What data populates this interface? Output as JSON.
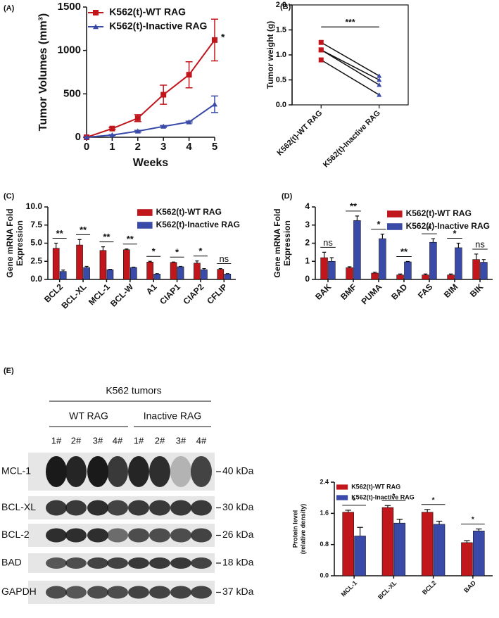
{
  "chart_data": [
    {
      "type": "line",
      "label": "(A)",
      "ylabel": "Tumor Volumes (mm³)",
      "xlabel": "Weeks",
      "x": [
        0,
        1,
        2,
        3,
        4,
        5
      ],
      "xlim": [
        0,
        5
      ],
      "xticks": [
        0,
        1,
        2,
        3,
        4,
        5
      ],
      "ylim": [
        0,
        1500
      ],
      "yticks": [
        0,
        500,
        1000,
        1500
      ],
      "series": [
        {
          "name": "K562(t)-WT RAG",
          "color": "#c0161c",
          "marker": "square",
          "values": [
            0,
            100,
            220,
            490,
            720,
            1120
          ],
          "errors": [
            0,
            10,
            40,
            110,
            150,
            240
          ]
        },
        {
          "name": "K562(t)-Inactive RAG",
          "color": "#3a4aa8",
          "marker": "triangle",
          "values": [
            0,
            25,
            70,
            125,
            175,
            380
          ],
          "errors": [
            0,
            5,
            10,
            10,
            10,
            95
          ]
        }
      ],
      "annotation": "*"
    },
    {
      "type": "paired",
      "label": "(B)",
      "ylabel": "Tumor weight (g)",
      "categories": [
        "K562(t)-WT RAG",
        "K562(t)-Inactive RAG"
      ],
      "colors": [
        "#c0161c",
        "#3a4aa8"
      ],
      "ylim": [
        0,
        2
      ],
      "yticks": [
        {
          "value": 0,
          "label": "0.0"
        },
        0.5,
        {
          "value": 1,
          "label": "1.0"
        },
        1.5,
        {
          "value": 2,
          "label": "2.0"
        }
      ],
      "pairs": [
        [
          1.25,
          0.58
        ],
        [
          1.1,
          0.5
        ],
        [
          1.1,
          0.4
        ],
        [
          0.9,
          0.2
        ]
      ],
      "annotation": "***"
    },
    {
      "type": "bar",
      "label": "(C)",
      "ylabel": [
        "Gene mRNA Fold",
        "Expression"
      ],
      "categories": [
        "BCL2",
        "BCL-XL",
        "MCL-1",
        "BCL-W",
        "A1",
        "CIAP1",
        "CIAP2",
        "CFLIP"
      ],
      "ylim": [
        0,
        10
      ],
      "yticks": [
        {
          "value": 0,
          "label": "0.0"
        },
        2.5,
        {
          "value": 5,
          "label": "5.0"
        },
        7.5,
        {
          "value": 10,
          "label": "10.0"
        }
      ],
      "series": [
        {
          "name": "K562(t)-WT RAG",
          "color": "#c0161c",
          "values": [
            4.3,
            4.75,
            4.0,
            4.1,
            2.4,
            2.35,
            2.25,
            1.4
          ],
          "errors": [
            0.7,
            0.75,
            0.5,
            0.1,
            0.1,
            0.05,
            0.3,
            0.1
          ]
        },
        {
          "name": "K562(t)-Inactive RAG",
          "color": "#3a4aa8",
          "values": [
            1.1,
            1.65,
            1.35,
            1.65,
            0.75,
            1.75,
            1.35,
            0.75
          ],
          "errors": [
            0.2,
            0.15,
            0.05,
            0.05,
            0.05,
            0.05,
            0.15,
            0.05
          ]
        }
      ],
      "annotations": [
        "**",
        "**",
        "**",
        "**",
        "*",
        "*",
        "*",
        "ns"
      ]
    },
    {
      "type": "bar",
      "label": "(D)",
      "ylabel": [
        "Gene mRNA Fold",
        "Expression"
      ],
      "categories": [
        "BAK",
        "BMF",
        "PUMA",
        "BAD",
        "FAS",
        "BIM",
        "BIK"
      ],
      "ylim": [
        0,
        4
      ],
      "yticks": [
        0,
        1,
        2,
        3,
        4
      ],
      "series": [
        {
          "name": "K562(t)-WT RAG",
          "color": "#c0161c",
          "values": [
            1.2,
            0.65,
            0.35,
            0.25,
            0.25,
            0.25,
            1.1
          ],
          "errors": [
            0.3,
            0.05,
            0.05,
            0.05,
            0.05,
            0.05,
            0.3
          ]
        },
        {
          "name": "K562(t)-Inactive RAG",
          "color": "#3a4aa8",
          "values": [
            1.0,
            3.25,
            2.25,
            0.97,
            2.05,
            1.75,
            0.95
          ],
          "errors": [
            0.2,
            0.25,
            0.25,
            0.02,
            0.2,
            0.25,
            0.15
          ]
        }
      ],
      "annotations": [
        "ns",
        "**",
        "*",
        "**",
        "*",
        "*",
        "ns"
      ]
    },
    {
      "type": "bar",
      "ylabel": [
        "Protein level",
        "(relative density)"
      ],
      "categories": [
        "MCL-1",
        "BCL-XL",
        "BCL2",
        "BAD"
      ],
      "ylim": [
        0,
        2.4
      ],
      "yticks": [
        {
          "value": 0,
          "label": "0.0"
        },
        0.8,
        1.6,
        2.4
      ],
      "series": [
        {
          "name": "K562(t)-WT RAG",
          "color": "#c0161c",
          "values": [
            1.63,
            1.75,
            1.63,
            0.85
          ],
          "errors": [
            0.05,
            0.05,
            0.07,
            0.05
          ]
        },
        {
          "name": "K562(t)-Inactive RAG",
          "color": "#3a4aa8",
          "values": [
            1.02,
            1.35,
            1.32,
            1.15
          ],
          "errors": [
            0.22,
            0.1,
            0.08,
            0.05
          ]
        }
      ],
      "annotations": [
        "*",
        "*",
        "*",
        "*"
      ]
    }
  ],
  "blot": {
    "label": "(E)",
    "title": "K562 tumors",
    "groups": [
      "WT RAG",
      "Inactive RAG"
    ],
    "lanes": [
      "1#",
      "2#",
      "3#",
      "4#",
      "1#",
      "2#",
      "3#",
      "4#"
    ],
    "rows": [
      {
        "name": "MCL-1",
        "size": "40 kDa"
      },
      {
        "name": "BCL-XL",
        "size": "30 kDa"
      },
      {
        "name": "BCL-2",
        "size": "26 kDa"
      },
      {
        "name": "BAD",
        "size": "18 kDa"
      },
      {
        "name": "GAPDH",
        "size": "37 kDa"
      }
    ]
  }
}
